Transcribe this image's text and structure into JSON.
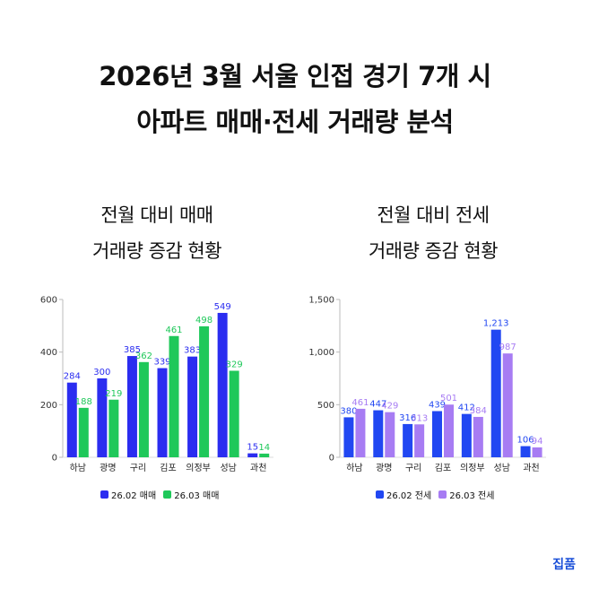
{
  "title": {
    "line1": "2026년 3월 서울 인접 경기 7개 시",
    "line2": "아파트 매매·전세 거래량 분석"
  },
  "charts": {
    "left": {
      "subtitle_line1": "전월 대비 매매",
      "subtitle_line2": "거래량 증감 현황"
    },
    "right": {
      "subtitle_line1": "전월 대비 전세",
      "subtitle_line2": "거래량 증감 현황"
    }
  },
  "brand": "집품",
  "colors": {
    "feb_sale": "#2b2df0",
    "mar_sale": "#1fc85a",
    "feb_jeonse": "#2147f2",
    "mar_jeonse": "#a77cf3"
  },
  "chart_data": [
    {
      "type": "bar",
      "title": "전월 대비 매매 거래량 증감 현황",
      "categories": [
        "하남",
        "광명",
        "구리",
        "김포",
        "의정부",
        "성남",
        "과천"
      ],
      "series": [
        {
          "name": "26.02 매매",
          "values": [
            284,
            300,
            385,
            339,
            383,
            549,
            15
          ]
        },
        {
          "name": "26.03 매매",
          "values": [
            188,
            219,
            362,
            461,
            498,
            329,
            14
          ]
        }
      ],
      "ylim": [
        0,
        600
      ],
      "yticks": [
        0,
        200,
        400,
        600
      ],
      "ytick_labels": [
        "0",
        "200",
        "400",
        "600"
      ],
      "data_labels": [
        [
          "284",
          "300",
          "385",
          "339",
          "383",
          "549",
          "15"
        ],
        [
          "188",
          "219",
          "362",
          "461",
          "498",
          "329",
          "14"
        ]
      ],
      "grid": false,
      "legend": "bottom"
    },
    {
      "type": "bar",
      "title": "전월 대비 전세 거래량 증감 현황",
      "categories": [
        "하남",
        "광명",
        "구리",
        "김포",
        "의정부",
        "성남",
        "과천"
      ],
      "series": [
        {
          "name": "26.02 전세",
          "values": [
            380,
            447,
            316,
            439,
            412,
            1213,
            106
          ]
        },
        {
          "name": "26.03 전세",
          "values": [
            461,
            429,
            313,
            501,
            384,
            987,
            94
          ]
        }
      ],
      "ylim": [
        0,
        1500
      ],
      "yticks": [
        0,
        500,
        1000,
        1500
      ],
      "ytick_labels": [
        "0",
        "500",
        "1,000",
        "1,500"
      ],
      "data_labels": [
        [
          "380",
          "447",
          "316",
          "439",
          "412",
          "1,213",
          "106"
        ],
        [
          "461",
          "429",
          "313",
          "501",
          "384",
          "987",
          "94"
        ]
      ],
      "grid": false,
      "legend": "bottom"
    }
  ]
}
